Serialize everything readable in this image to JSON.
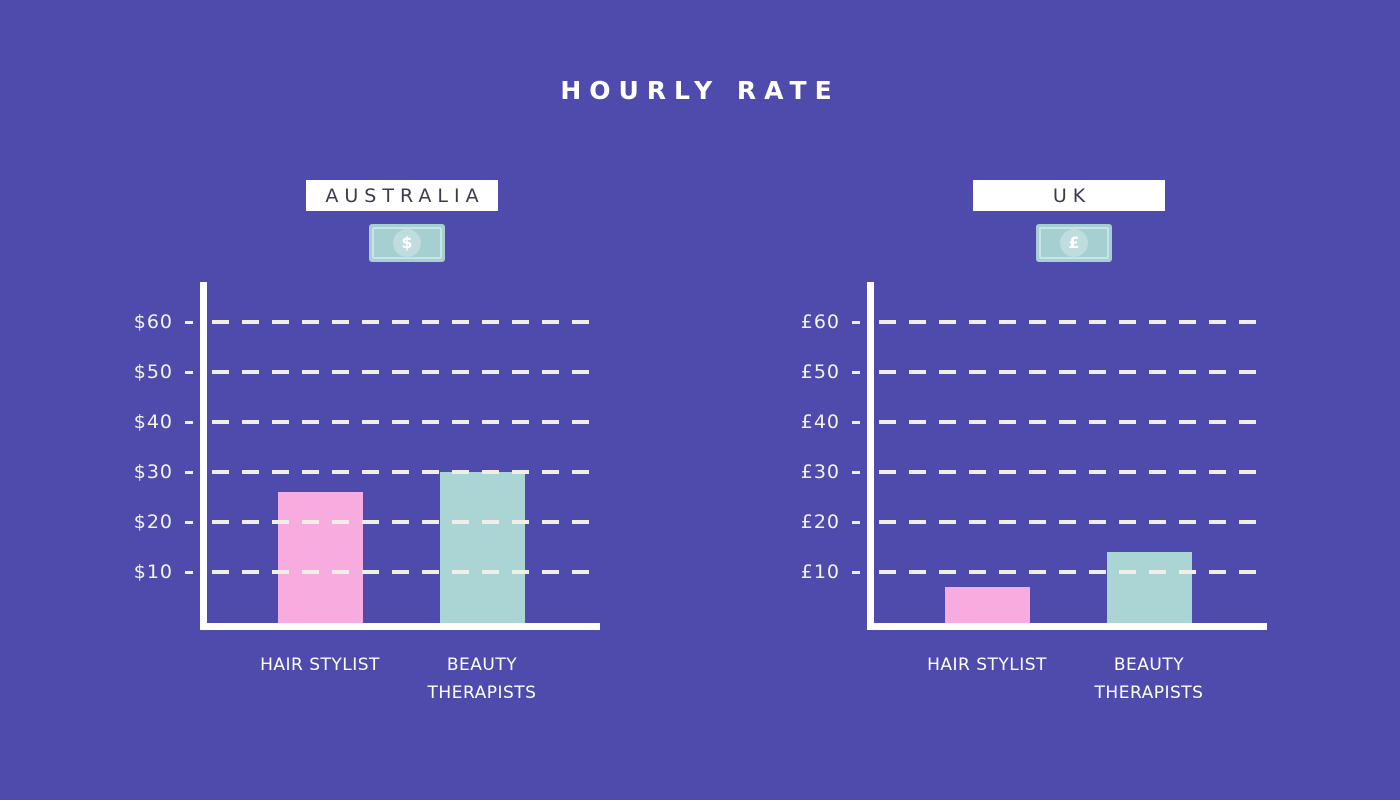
{
  "title": "HOURLY RATE",
  "colors": {
    "background": "#4E4BAD",
    "bars": [
      "#F8ABDE",
      "#ABD4D5"
    ],
    "axis": "#FFFFFF",
    "gridline": "#F0EFE7",
    "tick_text": "#F4F3EC",
    "category_text": "#FFFFFF",
    "country_box_bg": "#FFFFFF",
    "country_text": "#3B3B50",
    "banknote": "#A5CFD1",
    "banknote_border": "#C9E4E4",
    "banknote_circle": "#BFDDDE",
    "banknote_symbol": "#FFFFFF"
  },
  "chart_data": [
    {
      "type": "bar",
      "country": "AUSTRALIA",
      "currency_symbol": "$",
      "categories": [
        "HAIR STYLIST",
        "BEAUTY THERAPISTS"
      ],
      "values": [
        26,
        30
      ],
      "ytick_values": [
        60,
        50,
        40,
        30,
        20,
        10
      ],
      "ytick_labels": [
        "$60",
        "$50",
        "$40",
        "$30",
        "$20",
        "$10"
      ],
      "ylim": [
        0,
        68
      ],
      "grid": "dashed horizontal"
    },
    {
      "type": "bar",
      "country": "UK",
      "currency_symbol": "£",
      "categories": [
        "HAIR STYLIST",
        "BEAUTY THERAPISTS"
      ],
      "values": [
        7,
        14
      ],
      "ytick_values": [
        60,
        50,
        40,
        30,
        20,
        10
      ],
      "ytick_labels": [
        "£60",
        "£50",
        "£40",
        "£30",
        "£20",
        "£10"
      ],
      "ylim": [
        0,
        68
      ],
      "grid": "dashed horizontal"
    }
  ]
}
